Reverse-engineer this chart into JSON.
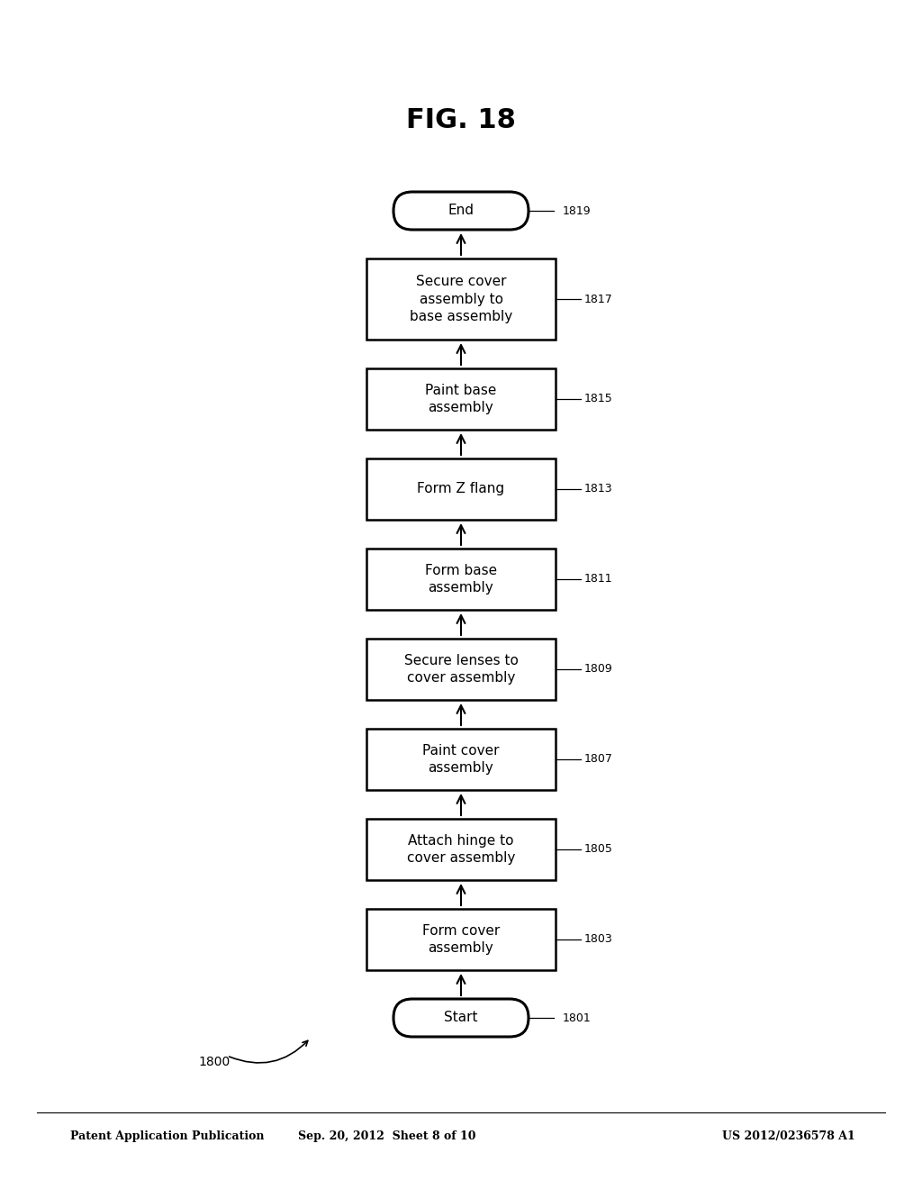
{
  "header_left": "Patent Application Publication",
  "header_center": "Sep. 20, 2012  Sheet 8 of 10",
  "header_right": "US 2012/0236578 A1",
  "fig_label": "FIG. 18",
  "diagram_label": "1800",
  "nodes": [
    {
      "id": "start",
      "type": "oval",
      "label": "Start",
      "ref": "1801"
    },
    {
      "id": "n1803",
      "type": "rect",
      "label": "Form cover\nassembly",
      "ref": "1803"
    },
    {
      "id": "n1805",
      "type": "rect",
      "label": "Attach hinge to\ncover assembly",
      "ref": "1805"
    },
    {
      "id": "n1807",
      "type": "rect",
      "label": "Paint cover\nassembly",
      "ref": "1807"
    },
    {
      "id": "n1809",
      "type": "rect",
      "label": "Secure lenses to\ncover assembly",
      "ref": "1809"
    },
    {
      "id": "n1811",
      "type": "rect",
      "label": "Form base\nassembly",
      "ref": "1811"
    },
    {
      "id": "n1813",
      "type": "rect",
      "label": "Form Z flang",
      "ref": "1813"
    },
    {
      "id": "n1815",
      "type": "rect",
      "label": "Paint base\nassembly",
      "ref": "1815"
    },
    {
      "id": "n1817",
      "type": "rect",
      "label": "Secure cover\nassembly to\nbase assembly",
      "ref": "1817"
    },
    {
      "id": "end",
      "type": "oval",
      "label": "End",
      "ref": "1819"
    }
  ],
  "background_color": "#ffffff",
  "text_color": "#000000",
  "font_size_node": 11,
  "font_size_header": 9,
  "font_size_ref": 9,
  "font_size_fig": 22,
  "font_size_label": 10
}
